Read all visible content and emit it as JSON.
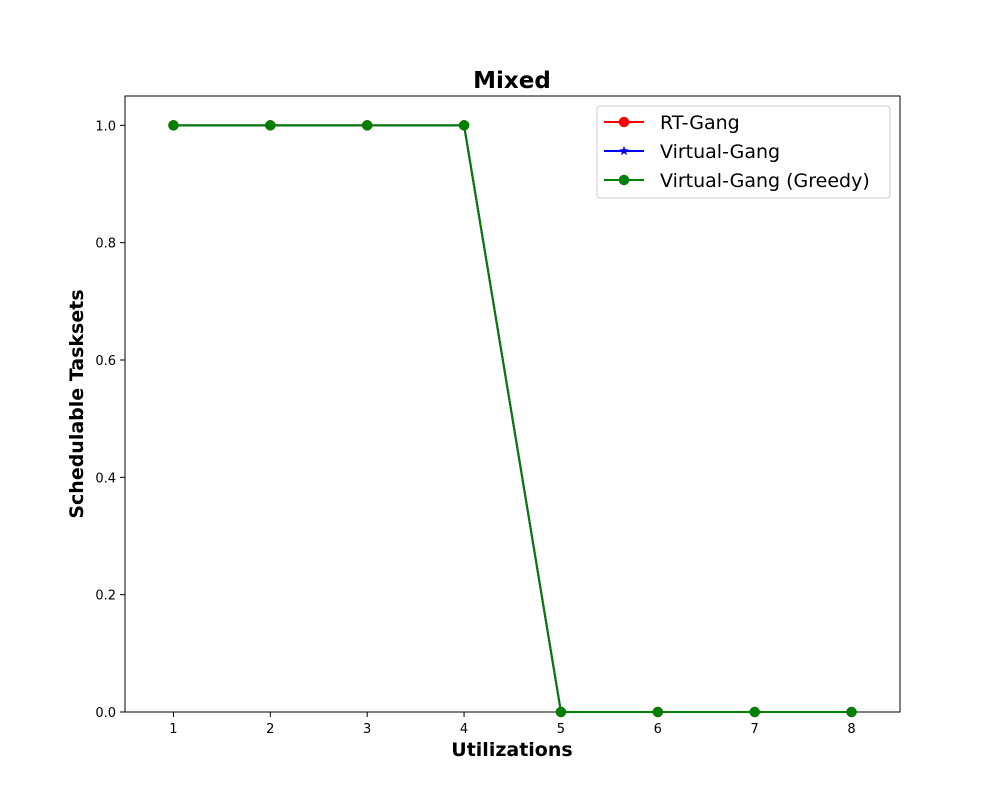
{
  "chart_data": {
    "type": "line",
    "title": "Mixed",
    "xlabel": "Utilizations",
    "ylabel": "Schedulable Tasksets",
    "x": [
      1,
      2,
      3,
      4,
      5,
      6,
      7,
      8
    ],
    "xticks": [
      "1",
      "2",
      "3",
      "4",
      "5",
      "6",
      "7",
      "8"
    ],
    "yticks": [
      "0.0",
      "0.2",
      "0.4",
      "0.6",
      "0.8",
      "1.0"
    ],
    "xlim": [
      0.5,
      8.5
    ],
    "ylim": [
      0,
      1.05
    ],
    "grid": false,
    "legend_position": "top-right",
    "series": [
      {
        "name": "RT-Gang",
        "values": [
          1,
          1,
          1,
          1,
          0,
          0,
          0,
          0
        ],
        "color": "#ff0000",
        "marker": "circle"
      },
      {
        "name": "Virtual-Gang",
        "values": [
          1,
          1,
          1,
          1,
          0,
          0,
          0,
          0
        ],
        "color": "#0000ff",
        "marker": "star"
      },
      {
        "name": "Virtual-Gang (Greedy)",
        "values": [
          1,
          1,
          1,
          1,
          0,
          0,
          0,
          0
        ],
        "color": "#008000",
        "marker": "circle"
      }
    ]
  }
}
